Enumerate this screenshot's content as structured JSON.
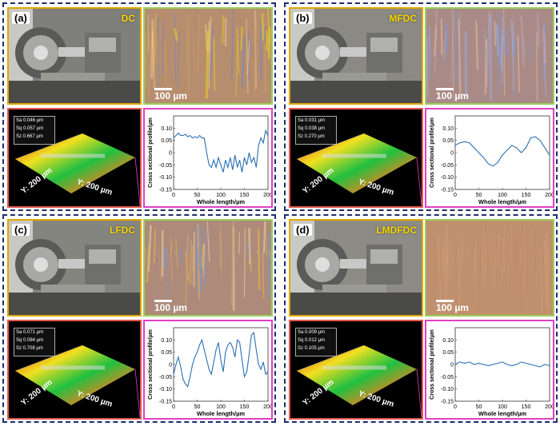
{
  "panels": [
    {
      "label": "(a)",
      "name": "DC",
      "scale": "100 µm",
      "stats": [
        "Sa 0.046 µm",
        "Sq 0.057 µm",
        "Sz 0.667 µm"
      ],
      "axis_y1": "Y: 200 µm",
      "axis_y2": "Y: 200 µm",
      "colors": {
        "photo": "#7f7f7c",
        "micro": "#b78d70"
      }
    },
    {
      "label": "(b)",
      "name": "MFDC",
      "scale": "100 µm",
      "stats": [
        "Sa 0.031 µm",
        "Sq 0.038 µm",
        "Sz 0.270 µm"
      ],
      "axis_y1": "Y: 200 µm",
      "axis_y2": "Y: 200 µm",
      "colors": {
        "photo": "#8a8984",
        "micro": "#a98a86"
      }
    },
    {
      "label": "(c)",
      "name": "LFDC",
      "scale": "100 µm",
      "stats": [
        "Sa 0.071 µm",
        "Sq 0.084 µm",
        "Sz 0.708 µm"
      ],
      "axis_y1": "Y: 200 µm",
      "axis_y2": "Y: 200 µm",
      "colors": {
        "photo": "#858580",
        "micro": "#ad8a7a"
      }
    },
    {
      "label": "(d)",
      "name": "LMDFDC",
      "scale": "100 µm",
      "stats": [
        "Sa 0.009 µm",
        "Sq 0.012 µm",
        "Sz 0.105 µm"
      ],
      "axis_y1": "Y: 200 µm",
      "axis_y2": "Y: 200 µm",
      "colors": {
        "photo": "#8c8b86",
        "micro": "#c0906e"
      }
    }
  ],
  "profile_axes": {
    "xlabel": "Whole length/µm",
    "ylabel": "Cross sectional profile/µm",
    "xticks": [
      "0",
      "50",
      "100",
      "150",
      "200"
    ],
    "yticks": [
      "0.10",
      "0.05",
      "0",
      "-0.05",
      "-0.10",
      "-0.15"
    ]
  },
  "chart_data": [
    {
      "type": "line",
      "panel": "(a)",
      "xlabel": "Whole length/µm",
      "ylabel": "Cross sectional profile/µm",
      "xlim": [
        0,
        200
      ],
      "ylim": [
        -0.15,
        0.15
      ],
      "x": [
        0,
        5,
        10,
        15,
        20,
        25,
        30,
        35,
        40,
        45,
        50,
        55,
        60,
        65,
        70,
        75,
        80,
        85,
        90,
        95,
        100,
        105,
        110,
        115,
        120,
        125,
        130,
        135,
        140,
        145,
        150,
        155,
        160,
        165,
        170,
        175,
        180,
        185,
        190,
        195,
        200
      ],
      "values": [
        0.06,
        0.07,
        0.08,
        0.07,
        0.07,
        0.075,
        0.065,
        0.07,
        0.06,
        0.065,
        0.06,
        0.07,
        0.06,
        0.06,
        0.0,
        -0.05,
        -0.06,
        -0.03,
        -0.06,
        -0.02,
        -0.05,
        -0.08,
        -0.03,
        -0.06,
        -0.02,
        -0.07,
        -0.01,
        -0.06,
        -0.03,
        -0.08,
        -0.02,
        -0.05,
        0.0,
        -0.04,
        -0.02,
        -0.06,
        0.03,
        0.06,
        0.04,
        0.09,
        0.07
      ]
    },
    {
      "type": "line",
      "panel": "(b)",
      "xlabel": "Whole length/µm",
      "ylabel": "Cross sectional profile/µm",
      "xlim": [
        0,
        200
      ],
      "ylim": [
        -0.15,
        0.15
      ],
      "x": [
        0,
        10,
        20,
        30,
        40,
        50,
        60,
        70,
        80,
        90,
        100,
        110,
        120,
        130,
        140,
        150,
        160,
        170,
        180,
        190,
        200
      ],
      "values": [
        0.03,
        0.04,
        0.045,
        0.04,
        0.02,
        0.0,
        -0.02,
        -0.045,
        -0.055,
        -0.04,
        -0.01,
        0.01,
        0.03,
        0.02,
        0.0,
        0.02,
        0.06,
        0.065,
        0.05,
        0.02,
        -0.01
      ]
    },
    {
      "type": "line",
      "panel": "(c)",
      "xlabel": "Whole length/µm",
      "ylabel": "Cross sectional profile/µm",
      "xlim": [
        0,
        200
      ],
      "ylim": [
        -0.15,
        0.15
      ],
      "x": [
        0,
        5,
        10,
        15,
        20,
        25,
        30,
        35,
        40,
        45,
        50,
        55,
        60,
        65,
        70,
        75,
        80,
        85,
        90,
        95,
        100,
        105,
        110,
        115,
        120,
        125,
        130,
        135,
        140,
        145,
        150,
        155,
        160,
        165,
        170,
        175,
        180,
        185,
        190,
        195,
        200
      ],
      "values": [
        -0.04,
        0.0,
        0.03,
        -0.01,
        -0.06,
        -0.08,
        -0.09,
        -0.05,
        0.0,
        0.03,
        0.05,
        0.08,
        0.1,
        0.06,
        0.02,
        -0.02,
        -0.04,
        0.01,
        0.06,
        0.09,
        0.02,
        -0.03,
        0.05,
        0.08,
        0.09,
        0.07,
        0.03,
        0.1,
        0.09,
        0.02,
        -0.05,
        -0.03,
        0.04,
        0.12,
        0.13,
        0.06,
        0.0,
        -0.02,
        0.01,
        -0.04,
        -0.03
      ]
    },
    {
      "type": "line",
      "panel": "(d)",
      "xlabel": "Whole length/µm",
      "ylabel": "Cross sectional profile/µm",
      "xlim": [
        0,
        200
      ],
      "ylim": [
        -0.15,
        0.15
      ],
      "x": [
        0,
        10,
        20,
        30,
        40,
        50,
        60,
        70,
        80,
        90,
        100,
        110,
        120,
        130,
        140,
        150,
        160,
        170,
        180,
        190,
        200
      ],
      "values": [
        0.0,
        0.01,
        0.005,
        0.01,
        0.0,
        0.005,
        0.0,
        -0.005,
        0.0,
        0.005,
        0.01,
        0.0,
        -0.005,
        0.0,
        0.01,
        0.005,
        0.0,
        -0.005,
        -0.01,
        0.0,
        -0.005
      ]
    }
  ]
}
